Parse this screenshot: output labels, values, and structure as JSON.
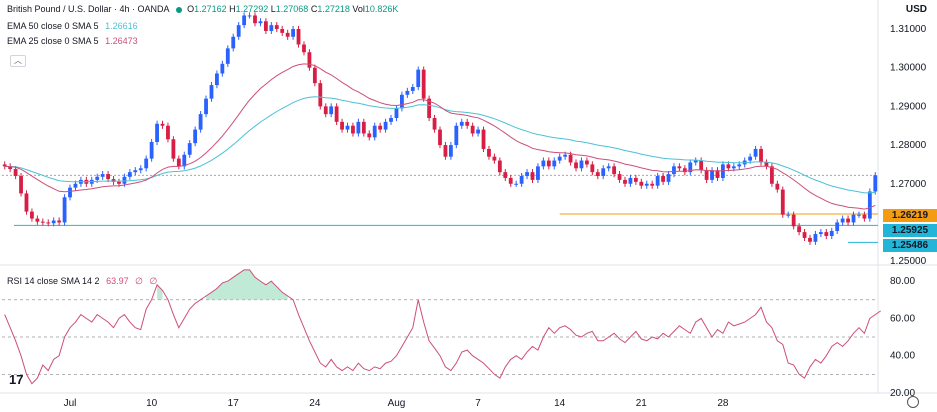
{
  "chart_data": [
    {
      "type": "candlestick",
      "title": "British Pound / U.S. Dollar · 4h · OANDA",
      "ohlc": {
        "o_label": "O",
        "o": "1.27162",
        "h_label": "H",
        "h": "1.27292",
        "l_label": "L",
        "l": "1.27068",
        "c_label": "C",
        "c": "1.27218",
        "vol_label": "Vol",
        "vol": "10.826K"
      },
      "currency": "USD",
      "ylim": [
        1.249,
        1.3175
      ],
      "y_ticks": [
        "1.31000",
        "1.30000",
        "1.29000",
        "1.28000",
        "1.27000",
        "1.25000"
      ],
      "x_ticks": [
        "Jul",
        "10",
        "17",
        "24",
        "Aug",
        "7",
        "14",
        "21",
        "28"
      ],
      "series": [
        {
          "name": "EMA 50 close 0 SMA 5",
          "value_label": "1.26616",
          "color": "#4bc1d6"
        },
        {
          "name": "EMA 25 close 0 SMA 5",
          "value_label": "1.26473",
          "color": "#cc4f7a"
        }
      ],
      "close": [
        1.2745,
        1.2738,
        1.272,
        1.2675,
        1.2628,
        1.261,
        1.2602,
        1.26,
        1.2598,
        1.2605,
        1.26,
        1.2665,
        1.269,
        1.27,
        1.271,
        1.27,
        1.271,
        1.2718,
        1.2725,
        1.2712,
        1.2705,
        1.27,
        1.2718,
        1.273,
        1.2735,
        1.274,
        1.2765,
        1.2808,
        1.2855,
        1.285,
        1.2815,
        1.2765,
        1.2745,
        1.2775,
        1.2805,
        1.284,
        1.288,
        1.292,
        1.2955,
        1.2985,
        1.301,
        1.305,
        1.308,
        1.311,
        1.3135,
        1.3135,
        1.3115,
        1.312,
        1.3095,
        1.311,
        1.31,
        1.309,
        1.308,
        1.31,
        1.306,
        1.304,
        1.3,
        1.296,
        1.29,
        1.288,
        1.29,
        1.286,
        1.284,
        1.285,
        1.283,
        1.286,
        1.283,
        1.282,
        1.285,
        1.284,
        1.286,
        1.287,
        1.2895,
        1.293,
        1.294,
        1.295,
        1.2995,
        1.292,
        1.287,
        1.284,
        1.28,
        1.277,
        1.28,
        1.285,
        1.286,
        1.285,
        1.283,
        1.284,
        1.279,
        1.277,
        1.276,
        1.273,
        1.2715,
        1.27,
        1.27,
        1.272,
        1.273,
        1.271,
        1.2745,
        1.276,
        1.2745,
        1.276,
        1.277,
        1.2775,
        1.2755,
        1.274,
        1.276,
        1.275,
        1.273,
        1.272,
        1.274,
        1.2745,
        1.2725,
        1.271,
        1.27,
        1.2715,
        1.2705,
        1.2695,
        1.27,
        1.2695,
        1.272,
        1.2705,
        1.2725,
        1.2745,
        1.274,
        1.273,
        1.2755,
        1.276,
        1.2735,
        1.271,
        1.2735,
        1.2715,
        1.275,
        1.274,
        1.2745,
        1.275,
        1.276,
        1.277,
        1.279,
        1.2755,
        1.2745,
        1.27,
        1.2685,
        1.262,
        1.262,
        1.259,
        1.2575,
        1.256,
        1.255,
        1.257,
        1.2575,
        1.2565,
        1.2578,
        1.26,
        1.261,
        1.26,
        1.262,
        1.262,
        1.261,
        1.268,
        1.2722
      ],
      "horizontal_levels": [
        {
          "label": "1.26219",
          "value": 1.26219,
          "color": "#f39c12"
        },
        {
          "label": "1.25925",
          "value": 1.25925,
          "color": "#22b5d8"
        },
        {
          "label": "1.25486",
          "value": 1.25486,
          "color": "#22b5d8"
        }
      ],
      "last_price": 1.27218
    },
    {
      "type": "line",
      "title": "RSI 14 close SMA 14 2",
      "value_label": "63.97",
      "extra_labels": [
        "∅",
        "∅"
      ],
      "ylim": [
        20,
        87
      ],
      "y_ticks": [
        "80.00",
        "60.00",
        "40.00",
        "20.00"
      ],
      "levels": [
        70,
        50,
        30
      ],
      "color": "#cc4f7a",
      "values": [
        62,
        55,
        48,
        40,
        30,
        25,
        28,
        35,
        32,
        38,
        40,
        50,
        55,
        58,
        62,
        60,
        58,
        62,
        60,
        58,
        55,
        60,
        62,
        58,
        55,
        54,
        65,
        70,
        78,
        75,
        70,
        62,
        55,
        60,
        65,
        68,
        70,
        72,
        74,
        76,
        79,
        80,
        82,
        84,
        86,
        86,
        82,
        80,
        78,
        80,
        77,
        74,
        72,
        70,
        62,
        55,
        48,
        42,
        36,
        34,
        38,
        34,
        32,
        34,
        32,
        36,
        33,
        32,
        34,
        33,
        36,
        37,
        40,
        45,
        50,
        55,
        70,
        58,
        48,
        44,
        40,
        34,
        32,
        36,
        42,
        43,
        40,
        38,
        36,
        33,
        30,
        28,
        34,
        38,
        40,
        38,
        42,
        45,
        43,
        50,
        55,
        52,
        55,
        56,
        54,
        51,
        50,
        52,
        53,
        48,
        48,
        50,
        52,
        49,
        47,
        50,
        53,
        49,
        48,
        50,
        49,
        52,
        50,
        53,
        56,
        54,
        52,
        58,
        60,
        55,
        50,
        54,
        52,
        58,
        56,
        57,
        58,
        60,
        62,
        66,
        58,
        55,
        48,
        46,
        36,
        35,
        30,
        28,
        34,
        38,
        36,
        40,
        45,
        47,
        45,
        48,
        52,
        55,
        52,
        60,
        62,
        64
      ]
    }
  ],
  "logo_text": "17"
}
